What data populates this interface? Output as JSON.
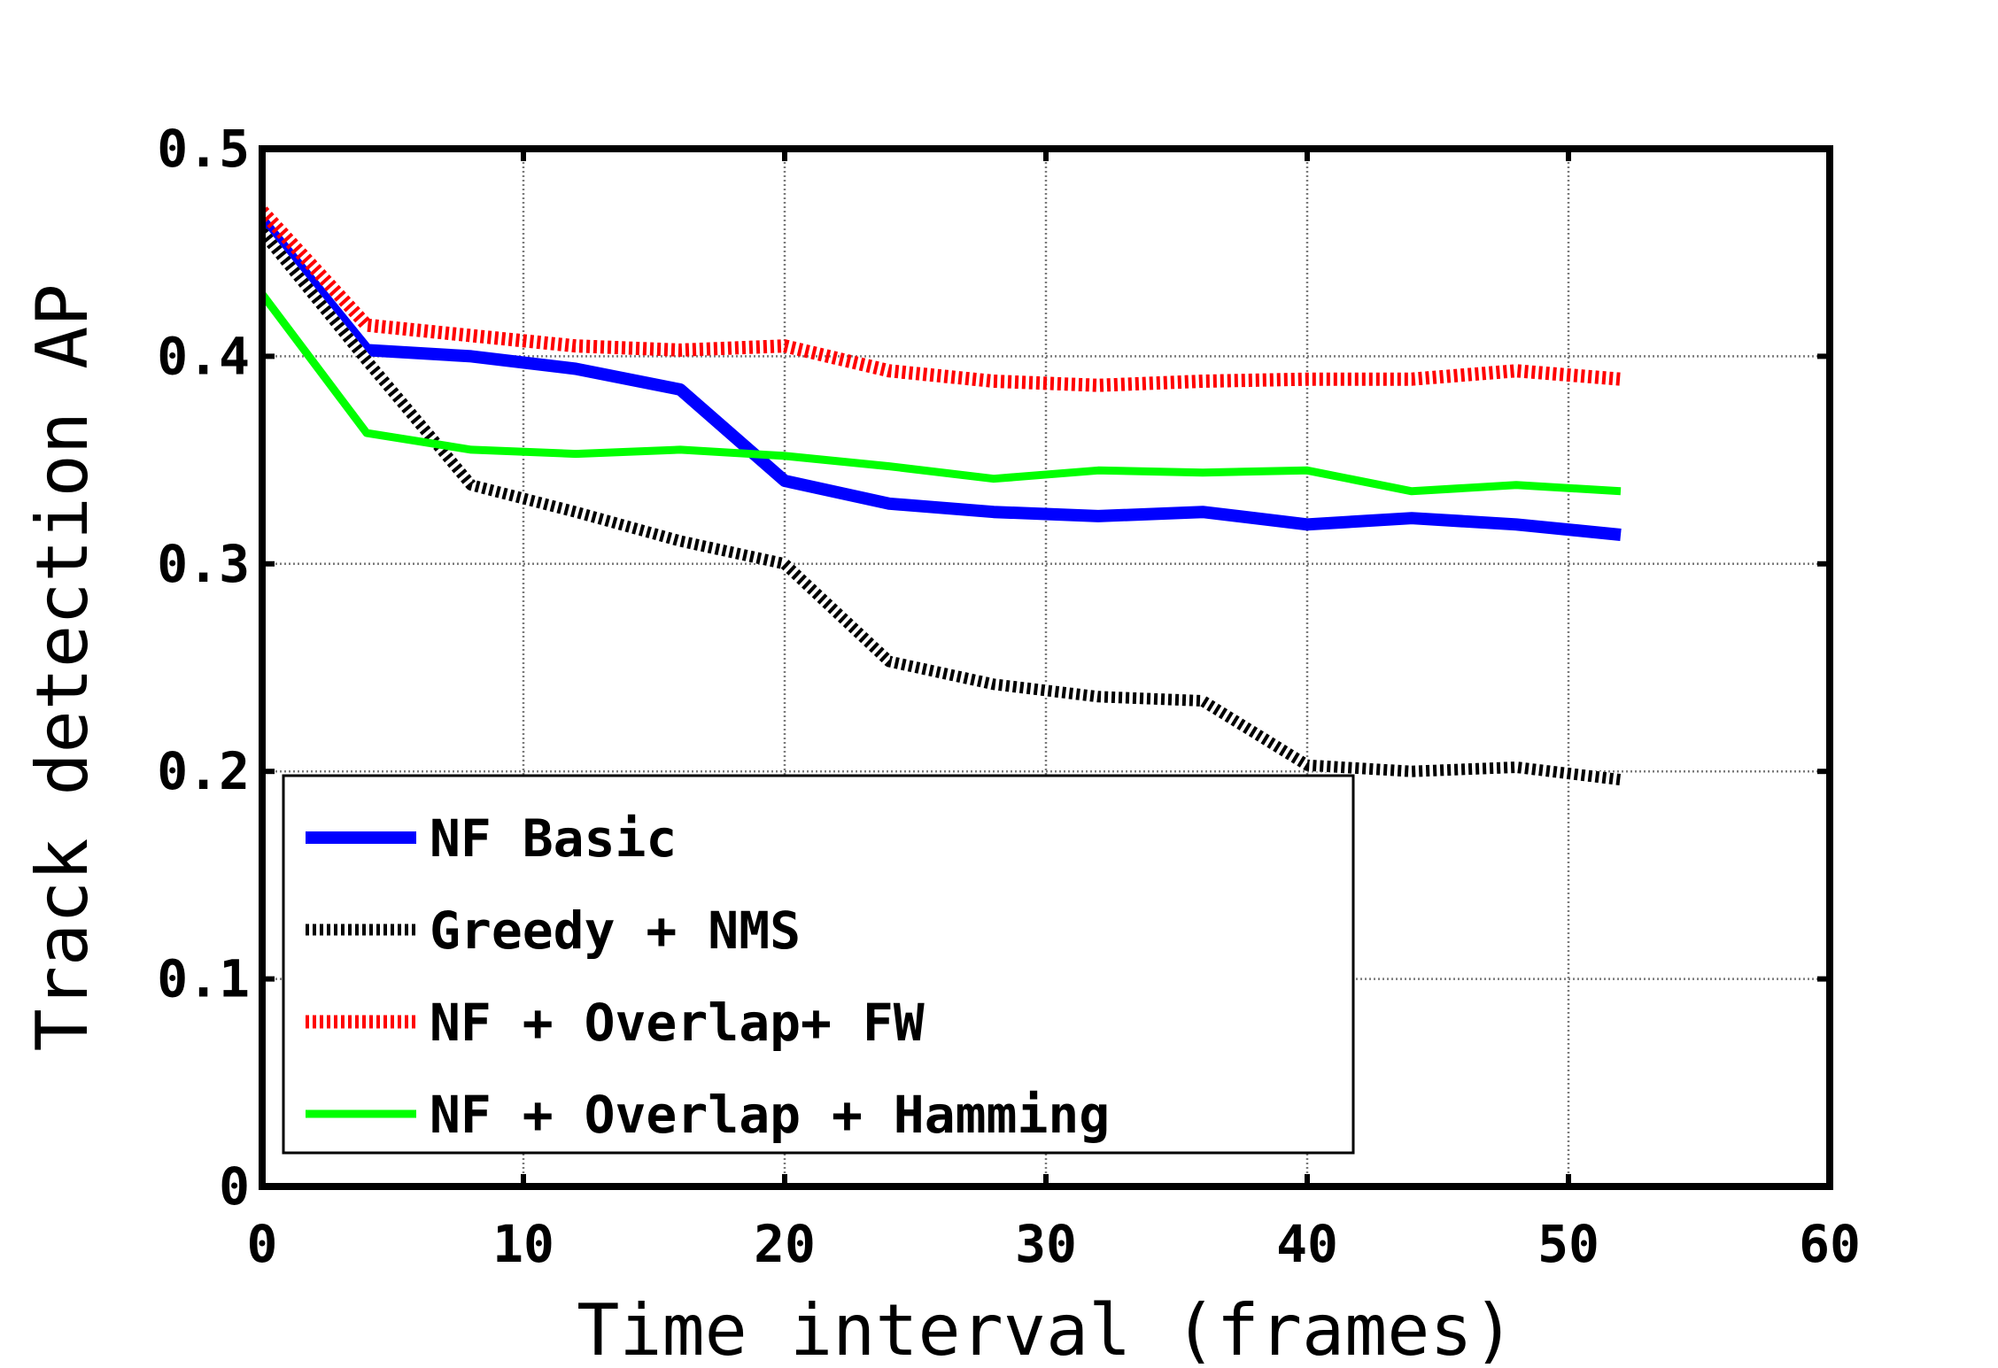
{
  "chart_data": {
    "type": "line",
    "title": "",
    "xlabel": "Time interval (frames)",
    "ylabel": "Track detection AP",
    "xlim": [
      0,
      60
    ],
    "ylim": [
      0,
      0.5
    ],
    "xticks": [
      0,
      10,
      20,
      30,
      40,
      50,
      60
    ],
    "xtick_labels": [
      "0",
      "10",
      "20",
      "30",
      "40",
      "50",
      "60"
    ],
    "yticks": [
      0,
      0.1,
      0.2,
      0.3,
      0.4,
      0.5
    ],
    "ytick_labels": [
      "0",
      "0.1",
      "0.2",
      "0.3",
      "0.4",
      "0.5"
    ],
    "grid": true,
    "legend_position": "bottom-left",
    "x": [
      0,
      4,
      8,
      12,
      16,
      20,
      24,
      28,
      32,
      36,
      40,
      44,
      48,
      52
    ],
    "series": [
      {
        "name": "NF Basic",
        "color": "#0000ff",
        "style": "solid",
        "values": [
          0.465,
          0.403,
          0.4,
          0.394,
          0.384,
          0.34,
          0.329,
          0.325,
          0.323,
          0.325,
          0.319,
          0.322,
          0.319,
          0.314
        ]
      },
      {
        "name": "Greedy + NMS",
        "color": "#000000",
        "style": "dotted",
        "values": [
          0.46,
          0.398,
          0.338,
          0.325,
          0.311,
          0.3,
          0.253,
          0.242,
          0.236,
          0.234,
          0.203,
          0.2,
          0.202,
          0.196
        ]
      },
      {
        "name": "NF + Overlap+ FW",
        "color": "#ff0000",
        "style": "dotted",
        "values": [
          0.47,
          0.415,
          0.41,
          0.405,
          0.403,
          0.405,
          0.393,
          0.388,
          0.386,
          0.388,
          0.389,
          0.389,
          0.393,
          0.389
        ]
      },
      {
        "name": "NF + Overlap + Hamming",
        "color": "#00ff00",
        "style": "solid",
        "values": [
          0.43,
          0.363,
          0.355,
          0.353,
          0.355,
          0.352,
          0.347,
          0.341,
          0.345,
          0.344,
          0.345,
          0.335,
          0.338,
          0.335
        ]
      }
    ]
  }
}
